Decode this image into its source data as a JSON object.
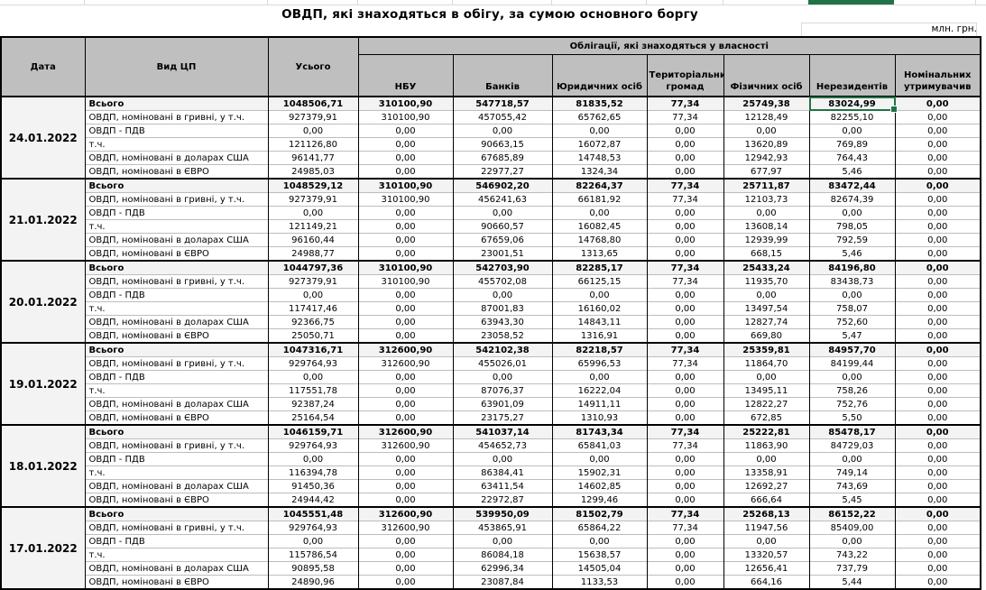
{
  "title": "ОВДП, які знаходяться в обігу, за сумою основного боргу",
  "units_label": "млн. грн.",
  "selection": {
    "block_index": 0,
    "row_index": 0,
    "value_index": 6,
    "color": "#217346"
  },
  "table": {
    "headers": {
      "date": "Дата",
      "security_type": "Вид ЦП",
      "total": "Усього",
      "ownership_group": "Облігації, які знаходяться у власності",
      "owners": [
        "НБУ",
        "Банків",
        "Юридичних осіб",
        "Територіальних громад",
        "Фізичних осіб",
        "Нерезидентів",
        "Номінальних утримувачив"
      ]
    },
    "blocks": [
      {
        "date": "24.01.2022",
        "rows": [
          {
            "label": "Всього",
            "values": [
              "1048506,71",
              "310100,90",
              "547718,57",
              "81835,52",
              "77,34",
              "25749,38",
              "83024,99",
              "0,00"
            ]
          },
          {
            "label": "ОВДП, номіновані в гривні, у т.ч.",
            "values": [
              "927379,91",
              "310100,90",
              "457055,42",
              "65762,65",
              "77,34",
              "12128,49",
              "82255,10",
              "0,00"
            ]
          },
          {
            "label": "ОВДП - ПДВ",
            "values": [
              "0,00",
              "0,00",
              "0,00",
              "0,00",
              "0,00",
              "0,00",
              "0,00",
              "0,00"
            ]
          },
          {
            "label": "т.ч.",
            "values": [
              "121126,80",
              "0,00",
              "90663,15",
              "16072,87",
              "0,00",
              "13620,89",
              "769,89",
              "0,00"
            ]
          },
          {
            "label": "ОВДП, номіновані в доларах США",
            "values": [
              "96141,77",
              "0,00",
              "67685,89",
              "14748,53",
              "0,00",
              "12942,93",
              "764,43",
              "0,00"
            ]
          },
          {
            "label": "ОВДП, номіновані в ЄВРО",
            "values": [
              "24985,03",
              "0,00",
              "22977,27",
              "1324,34",
              "0,00",
              "677,97",
              "5,46",
              "0,00"
            ]
          }
        ]
      },
      {
        "date": "21.01.2022",
        "rows": [
          {
            "label": "Всього",
            "values": [
              "1048529,12",
              "310100,90",
              "546902,20",
              "82264,37",
              "77,34",
              "25711,87",
              "83472,44",
              "0,00"
            ]
          },
          {
            "label": "ОВДП, номіновані в гривні, у т.ч.",
            "values": [
              "927379,91",
              "310100,90",
              "456241,63",
              "66181,92",
              "77,34",
              "12103,73",
              "82674,39",
              "0,00"
            ]
          },
          {
            "label": "ОВДП - ПДВ",
            "values": [
              "0,00",
              "0,00",
              "0,00",
              "0,00",
              "0,00",
              "0,00",
              "0,00",
              "0,00"
            ]
          },
          {
            "label": "т.ч.",
            "values": [
              "121149,21",
              "0,00",
              "90660,57",
              "16082,45",
              "0,00",
              "13608,14",
              "798,05",
              "0,00"
            ]
          },
          {
            "label": "ОВДП, номіновані в доларах США",
            "values": [
              "96160,44",
              "0,00",
              "67659,06",
              "14768,80",
              "0,00",
              "12939,99",
              "792,59",
              "0,00"
            ]
          },
          {
            "label": "ОВДП, номіновані в ЄВРО",
            "values": [
              "24988,77",
              "0,00",
              "23001,51",
              "1313,65",
              "0,00",
              "668,15",
              "5,46",
              "0,00"
            ]
          }
        ]
      },
      {
        "date": "20.01.2022",
        "rows": [
          {
            "label": "Всього",
            "values": [
              "1044797,36",
              "310100,90",
              "542703,90",
              "82285,17",
              "77,34",
              "25433,24",
              "84196,80",
              "0,00"
            ]
          },
          {
            "label": "ОВДП, номіновані в гривні, у т.ч.",
            "values": [
              "927379,91",
              "310100,90",
              "455702,08",
              "66125,15",
              "77,34",
              "11935,70",
              "83438,73",
              "0,00"
            ]
          },
          {
            "label": "ОВДП - ПДВ",
            "values": [
              "0,00",
              "0,00",
              "0,00",
              "0,00",
              "0,00",
              "0,00",
              "0,00",
              "0,00"
            ]
          },
          {
            "label": "т.ч.",
            "values": [
              "117417,46",
              "0,00",
              "87001,83",
              "16160,02",
              "0,00",
              "13497,54",
              "758,07",
              "0,00"
            ]
          },
          {
            "label": "ОВДП, номіновані в доларах США",
            "values": [
              "92366,75",
              "0,00",
              "63943,30",
              "14843,11",
              "0,00",
              "12827,74",
              "752,60",
              "0,00"
            ]
          },
          {
            "label": "ОВДП, номіновані в ЄВРО",
            "values": [
              "25050,71",
              "0,00",
              "23058,52",
              "1316,91",
              "0,00",
              "669,80",
              "5,47",
              "0,00"
            ]
          }
        ]
      },
      {
        "date": "19.01.2022",
        "rows": [
          {
            "label": "Всього",
            "values": [
              "1047316,71",
              "312600,90",
              "542102,38",
              "82218,57",
              "77,34",
              "25359,81",
              "84957,70",
              "0,00"
            ]
          },
          {
            "label": "ОВДП, номіновані в гривні, у т.ч.",
            "values": [
              "929764,93",
              "312600,90",
              "455026,01",
              "65996,53",
              "77,34",
              "11864,70",
              "84199,44",
              "0,00"
            ]
          },
          {
            "label": "ОВДП - ПДВ",
            "values": [
              "0,00",
              "0,00",
              "0,00",
              "0,00",
              "0,00",
              "0,00",
              "0,00",
              "0,00"
            ]
          },
          {
            "label": "т.ч.",
            "values": [
              "117551,78",
              "0,00",
              "87076,37",
              "16222,04",
              "0,00",
              "13495,11",
              "758,26",
              "0,00"
            ]
          },
          {
            "label": "ОВДП, номіновані в доларах США",
            "values": [
              "92387,24",
              "0,00",
              "63901,09",
              "14911,11",
              "0,00",
              "12822,27",
              "752,76",
              "0,00"
            ]
          },
          {
            "label": "ОВДП, номіновані в ЄВРО",
            "values": [
              "25164,54",
              "0,00",
              "23175,27",
              "1310,93",
              "0,00",
              "672,85",
              "5,50",
              "0,00"
            ]
          }
        ]
      },
      {
        "date": "18.01.2022",
        "rows": [
          {
            "label": "Всього",
            "values": [
              "1046159,71",
              "312600,90",
              "541037,14",
              "81743,34",
              "77,34",
              "25222,81",
              "85478,17",
              "0,00"
            ]
          },
          {
            "label": "ОВДП, номіновані в гривні, у т.ч.",
            "values": [
              "929764,93",
              "312600,90",
              "454652,73",
              "65841,03",
              "77,34",
              "11863,90",
              "84729,03",
              "0,00"
            ]
          },
          {
            "label": "ОВДП - ПДВ",
            "values": [
              "0,00",
              "0,00",
              "0,00",
              "0,00",
              "0,00",
              "0,00",
              "0,00",
              "0,00"
            ]
          },
          {
            "label": "т.ч.",
            "values": [
              "116394,78",
              "0,00",
              "86384,41",
              "15902,31",
              "0,00",
              "13358,91",
              "749,14",
              "0,00"
            ]
          },
          {
            "label": "ОВДП, номіновані в доларах США",
            "values": [
              "91450,36",
              "0,00",
              "63411,54",
              "14602,85",
              "0,00",
              "12692,27",
              "743,69",
              "0,00"
            ]
          },
          {
            "label": "ОВДП, номіновані в ЄВРО",
            "values": [
              "24944,42",
              "0,00",
              "22972,87",
              "1299,46",
              "0,00",
              "666,64",
              "5,45",
              "0,00"
            ]
          }
        ]
      },
      {
        "date": "17.01.2022",
        "rows": [
          {
            "label": "Всього",
            "values": [
              "1045551,48",
              "312600,90",
              "539950,09",
              "81502,79",
              "77,34",
              "25268,13",
              "86152,22",
              "0,00"
            ]
          },
          {
            "label": "ОВДП, номіновані в гривні, у т.ч.",
            "values": [
              "929764,93",
              "312600,90",
              "453865,91",
              "65864,22",
              "77,34",
              "11947,56",
              "85409,00",
              "0,00"
            ]
          },
          {
            "label": "ОВДП - ПДВ",
            "values": [
              "0,00",
              "0,00",
              "0,00",
              "0,00",
              "0,00",
              "0,00",
              "0,00",
              "0,00"
            ]
          },
          {
            "label": "т.ч.",
            "values": [
              "115786,54",
              "0,00",
              "86084,18",
              "15638,57",
              "0,00",
              "13320,57",
              "743,22",
              "0,00"
            ]
          },
          {
            "label": "ОВДП, номіновані в доларах США",
            "values": [
              "90895,58",
              "0,00",
              "62996,34",
              "14505,04",
              "0,00",
              "12656,41",
              "737,79",
              "0,00"
            ]
          },
          {
            "label": "ОВДП, номіновані в ЄВРО",
            "values": [
              "24890,96",
              "0,00",
              "23087,84",
              "1133,53",
              "0,00",
              "664,16",
              "5,44",
              "0,00"
            ]
          }
        ]
      }
    ]
  }
}
